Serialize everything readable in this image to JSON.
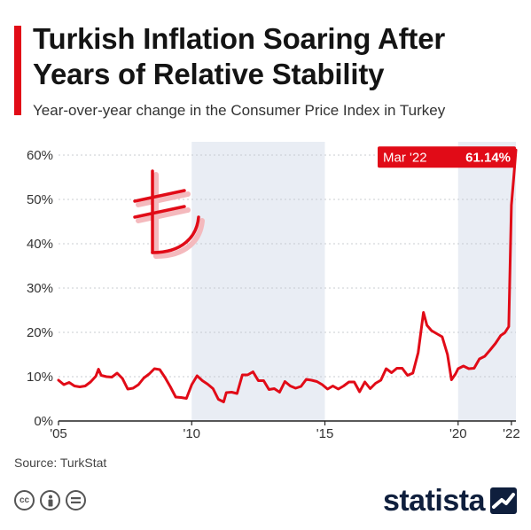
{
  "header": {
    "title": "Turkish Inflation Soaring After Years of Relative Stability",
    "subtitle": "Year-over-year change in the Consumer Price Index in Turkey"
  },
  "footer": {
    "source": "Source: TurkStat",
    "brand": "statista"
  },
  "icons": {
    "currency_icon": "turkish-lira-icon",
    "license_icons": [
      "creative-commons-icon",
      "attribution-icon",
      "no-derivatives-icon"
    ]
  },
  "colors": {
    "accent": "#e10b17",
    "band": "#e9edf4",
    "brand": "#0f1f3d"
  },
  "chart_data": {
    "type": "line",
    "title": "Turkish Inflation Soaring After Years of Relative Stability",
    "subtitle": "Year-over-year change in the Consumer Price Index in Turkey",
    "xlabel": "",
    "ylabel": "",
    "xlim": [
      2005.0,
      2022.17
    ],
    "ylim": [
      0,
      60
    ],
    "y_ticks": [
      "0%",
      "10%",
      "20%",
      "30%",
      "40%",
      "50%",
      "60%"
    ],
    "x_ticks": [
      {
        "label": "'05",
        "year": 2005
      },
      {
        "label": "'10",
        "year": 2010
      },
      {
        "label": "'15",
        "year": 2015
      },
      {
        "label": "'20",
        "year": 2020
      },
      {
        "label": "'22",
        "year": 2022
      }
    ],
    "shaded_periods": [
      [
        2010,
        2015
      ],
      [
        2020,
        2022.17
      ]
    ],
    "grid": true,
    "annotation": {
      "date": "Mar '22",
      "value_label": "61.14%",
      "x": 2022.17,
      "y": 61.14
    },
    "series": [
      {
        "x": [
          2005.0,
          2005.2,
          2005.4,
          2005.6,
          2005.8,
          2006.0,
          2006.2,
          2006.4,
          2006.5,
          2006.6,
          2006.8,
          2007.0,
          2007.2,
          2007.4,
          2007.6,
          2007.8,
          2008.0,
          2008.2,
          2008.4,
          2008.6,
          2008.8,
          2009.0,
          2009.2,
          2009.4,
          2009.6,
          2009.8,
          2010.0,
          2010.2,
          2010.4,
          2010.6,
          2010.8,
          2011.0,
          2011.2,
          2011.3,
          2011.5,
          2011.7,
          2011.9,
          2012.1,
          2012.3,
          2012.5,
          2012.7,
          2012.9,
          2013.1,
          2013.3,
          2013.5,
          2013.7,
          2013.9,
          2014.1,
          2014.3,
          2014.5,
          2014.7,
          2014.9,
          2015.1,
          2015.3,
          2015.5,
          2015.7,
          2015.9,
          2016.1,
          2016.3,
          2016.5,
          2016.7,
          2016.9,
          2017.1,
          2017.3,
          2017.5,
          2017.7,
          2017.9,
          2018.1,
          2018.3,
          2018.5,
          2018.7,
          2018.83,
          2019.0,
          2019.2,
          2019.4,
          2019.6,
          2019.75,
          2019.9,
          2020.0,
          2020.2,
          2020.4,
          2020.6,
          2020.8,
          2021.0,
          2021.2,
          2021.4,
          2021.6,
          2021.75,
          2021.9,
          2022.0,
          2022.08,
          2022.17
        ],
        "y": [
          9.2,
          8.2,
          8.7,
          7.9,
          7.7,
          7.9,
          8.8,
          10.1,
          11.7,
          10.3,
          10.0,
          9.9,
          10.8,
          9.6,
          7.2,
          7.4,
          8.2,
          9.7,
          10.6,
          11.8,
          11.6,
          9.8,
          7.7,
          5.4,
          5.3,
          5.1,
          8.2,
          10.2,
          9.1,
          8.3,
          7.3,
          4.9,
          4.3,
          6.4,
          6.5,
          6.2,
          10.4,
          10.4,
          11.1,
          9.1,
          9.1,
          7.1,
          7.3,
          6.5,
          8.9,
          7.9,
          7.4,
          7.8,
          9.4,
          9.2,
          8.9,
          8.2,
          7.2,
          7.9,
          7.2,
          7.9,
          8.8,
          8.8,
          6.6,
          8.8,
          7.3,
          8.5,
          9.2,
          11.8,
          10.9,
          11.9,
          11.9,
          10.3,
          10.8,
          15.4,
          24.5,
          21.6,
          20.4,
          19.7,
          19.0,
          15.0,
          9.3,
          10.6,
          11.8,
          12.4,
          11.8,
          11.9,
          14.0,
          14.6,
          16.0,
          17.5,
          19.3,
          19.9,
          21.3,
          48.7,
          54.4,
          61.14
        ]
      }
    ]
  }
}
